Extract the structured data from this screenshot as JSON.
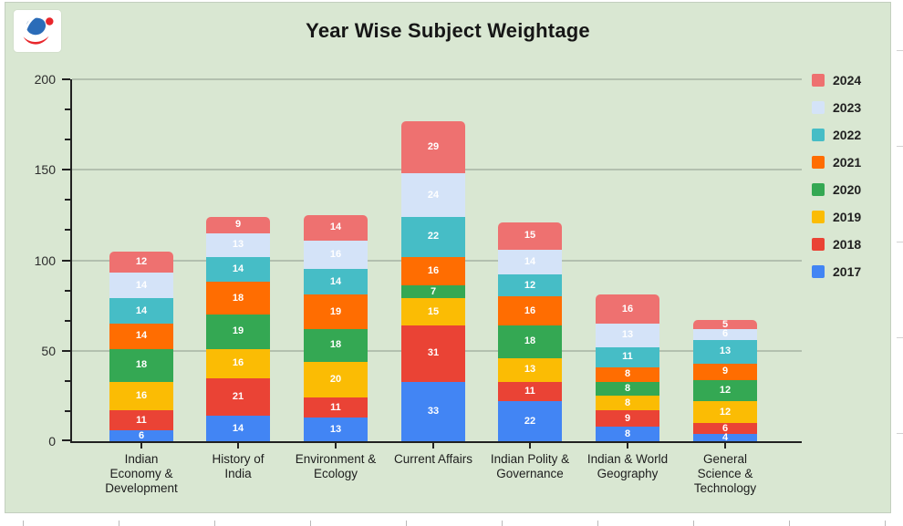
{
  "header": {
    "title": "Year Wise Subject Weightage"
  },
  "colors": {
    "card_background": "#d9e7d2",
    "gridline": "#b3c0af",
    "axis": "#212121",
    "value_label": "#ffffff",
    "logo_blue": "#2b6cb8",
    "logo_red": "#e8262b"
  },
  "chart_data": {
    "type": "bar",
    "stacked": true,
    "title": "Year Wise Subject Weightage",
    "xlabel": "",
    "ylabel": "",
    "ylim": [
      0,
      200
    ],
    "y_ticks": [
      0,
      50,
      100,
      150,
      200
    ],
    "minor_ticks_per_gap": 2,
    "grid": true,
    "legend_position": "right",
    "legend_order": "reversed",
    "categories": [
      "Indian\nEconomy &\nDevelopment",
      "History of\nIndia",
      "Environment &\nEcology",
      "Current Affairs",
      "Indian Polity &\nGovernance",
      "Indian & World\nGeography",
      "General\nScience &\nTechnology"
    ],
    "series": [
      {
        "name": "2017",
        "color": "#4285f4",
        "values": [
          6,
          14,
          13,
          33,
          22,
          8,
          4
        ]
      },
      {
        "name": "2018",
        "color": "#ea4335",
        "values": [
          11,
          21,
          11,
          31,
          11,
          9,
          6
        ]
      },
      {
        "name": "2019",
        "color": "#fbbc04",
        "values": [
          16,
          16,
          20,
          15,
          13,
          8,
          12
        ]
      },
      {
        "name": "2020",
        "color": "#34a853",
        "values": [
          18,
          19,
          18,
          7,
          18,
          8,
          12
        ]
      },
      {
        "name": "2021",
        "color": "#ff6d01",
        "values": [
          14,
          18,
          19,
          16,
          16,
          8,
          9
        ]
      },
      {
        "name": "2022",
        "color": "#46bdc6",
        "values": [
          14,
          14,
          14,
          22,
          12,
          11,
          13
        ]
      },
      {
        "name": "2023",
        "color": "#d4e3f8",
        "values": [
          14,
          13,
          16,
          24,
          14,
          13,
          6
        ]
      },
      {
        "name": "2024",
        "color": "#ee7170",
        "values": [
          12,
          9,
          14,
          29,
          15,
          16,
          5
        ]
      }
    ],
    "bar_totals": [
      105,
      124,
      125,
      177,
      121,
      81,
      67
    ]
  }
}
